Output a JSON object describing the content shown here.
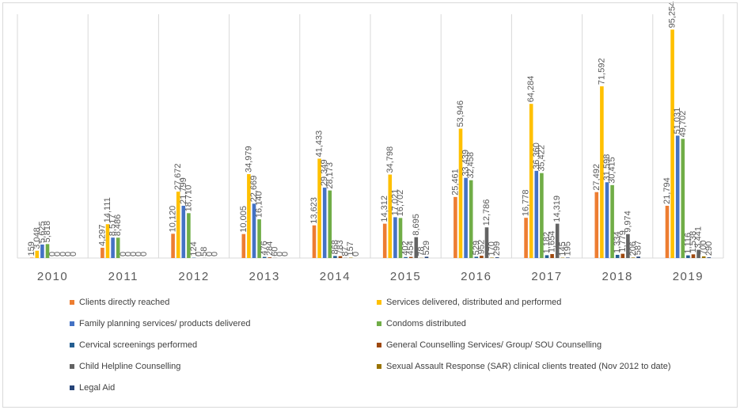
{
  "chart_data": {
    "type": "bar",
    "title": "",
    "xlabel": "",
    "ylabel": "",
    "categories": [
      "2010",
      "2011",
      "2012",
      "2013",
      "2014",
      "2015",
      "2016",
      "2017",
      "2018",
      "2019"
    ],
    "ylim": [
      0,
      100000
    ],
    "grid": "vertical separators between categories",
    "legend_placement": "bottom",
    "series": [
      {
        "name": "Clients directly reached",
        "color": "#ED7D31",
        "values": [
          159,
          4297,
          10120,
          10005,
          13623,
          14312,
          25461,
          16778,
          27492,
          21794
        ],
        "labels": [
          "159",
          "4,297",
          "10,120",
          "10,005",
          "13,623",
          "14,312",
          "25,461",
          "16,778",
          "27,492",
          "21,794"
        ]
      },
      {
        "name": "Services delivered, distributed and performed",
        "color": "#FFC000",
        "values": [
          3048,
          14111,
          27672,
          34979,
          41433,
          34798,
          53946,
          64284,
          71592,
          95254
        ],
        "labels": [
          "3,048",
          "14,111",
          "27,672",
          "34,979",
          "41,433",
          "34,798",
          "53,946",
          "64,284",
          "71,592",
          "95,254"
        ]
      },
      {
        "name": "Family planning services/ products delivered",
        "color": "#4472C4",
        "values": [
          5625,
          8517,
          21799,
          22669,
          29349,
          17021,
          33439,
          36360,
          31598,
          51031
        ],
        "labels": [
          "5,625",
          "8,517",
          "21,799",
          "22,669",
          "29,349",
          "17,021",
          "33,439",
          "36,360",
          "31,598",
          "51,031"
        ]
      },
      {
        "name": "Condoms distributed",
        "color": "#70AD47",
        "values": [
          5818,
          8486,
          18710,
          16140,
          28173,
          16702,
          32458,
          35422,
          30415,
          49702
        ],
        "labels": [
          "5,818",
          "8,486",
          "18,710",
          "16,140",
          "28,173",
          "16,702",
          "32,458",
          "35,422",
          "30,415",
          "49,702"
        ]
      },
      {
        "name": "Cervical screenings performed",
        "color": "#255E91",
        "values": [
          0,
          0,
          124,
          476,
          868,
          402,
          529,
          1182,
          1334,
          1116
        ],
        "labels": [
          "0",
          "0",
          "124",
          "476",
          "868",
          "402",
          "529",
          "1,182",
          "1,334",
          "1,116"
        ]
      },
      {
        "name": "General Counselling Services/ Group/ SOU Counselling",
        "color": "#9E480E",
        "values": [
          0,
          0,
          0,
          284,
          783,
          454,
          952,
          1654,
          1779,
          1538
        ],
        "labels": [
          "0",
          "0",
          "0",
          "284",
          "783",
          "454",
          "952",
          "1,654",
          "1,779",
          "1,538"
        ]
      },
      {
        "name": "Child Helpline Counselling",
        "color": "#636363",
        "values": [
          0,
          0,
          58,
          60,
          87,
          8695,
          12786,
          14319,
          9974,
          3441
        ],
        "labels": [
          "0",
          "0",
          "58",
          "60",
          "87",
          "8,695",
          "12,786",
          "14,319",
          "9,974",
          "3,441"
        ]
      },
      {
        "name": "Sexual Assault Response (SAR)  clinical clients treated (Nov 2012 to date)",
        "color": "#997300",
        "values": [
          0,
          0,
          0,
          0,
          157,
          78,
          170,
          145,
          206,
          700
        ],
        "labels": [
          "0",
          "0",
          "0",
          "0",
          "157",
          "78",
          "170",
          "145",
          "206",
          "700"
        ]
      },
      {
        "name": "Legal Aid",
        "color": "#264478",
        "values": [
          0,
          0,
          0,
          0,
          0,
          529,
          299,
          195,
          587,
          290
        ],
        "labels": [
          "0",
          "0",
          "0",
          "0",
          "0",
          "529",
          "299",
          "195",
          "587",
          "290"
        ]
      }
    ]
  }
}
